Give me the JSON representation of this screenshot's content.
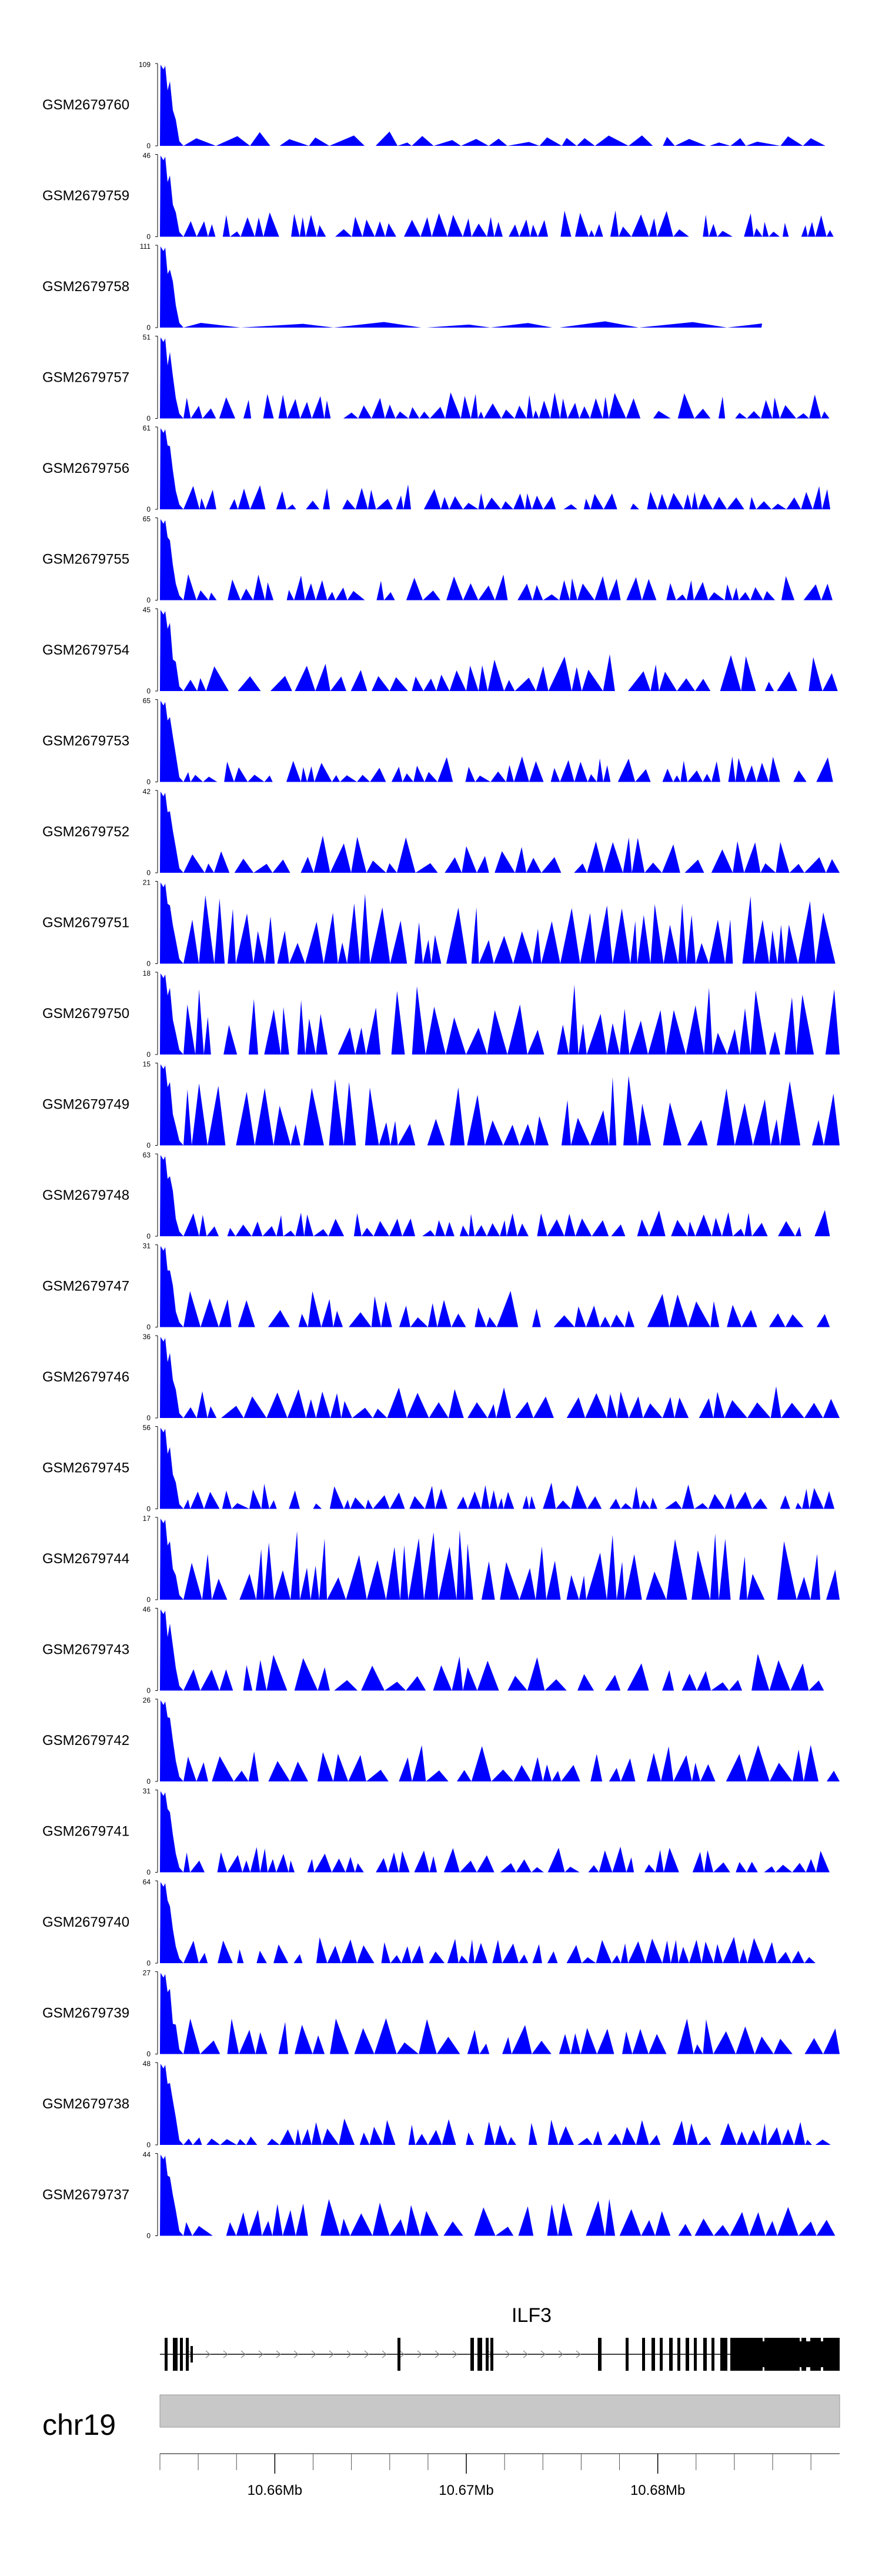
{
  "chart_data": {
    "type": "area",
    "description_type": "genome-browser coverage tracks",
    "fill_color": "#0000ff",
    "axis_color": "#000000",
    "x_domain_mb": [
      10.654,
      10.6895
    ],
    "tracks": [
      {
        "name": "GSM2679760",
        "ymax": "109",
        "ymin": "0",
        "peak": 109,
        "profile": "long"
      },
      {
        "name": "GSM2679759",
        "ymax": "46",
        "ymin": "0",
        "peak": 46,
        "profile": "dense"
      },
      {
        "name": "GSM2679758",
        "ymax": "111",
        "ymin": "0",
        "peak": 111,
        "profile": "sparse"
      },
      {
        "name": "GSM2679757",
        "ymax": "51",
        "ymin": "0",
        "peak": 51,
        "profile": "dense"
      },
      {
        "name": "GSM2679756",
        "ymax": "61",
        "ymin": "0",
        "peak": 61,
        "profile": "dense"
      },
      {
        "name": "GSM2679755",
        "ymax": "65",
        "ymin": "0",
        "peak": 65,
        "profile": "dense"
      },
      {
        "name": "GSM2679754",
        "ymax": "45",
        "ymin": "0",
        "peak": 45,
        "profile": "medium"
      },
      {
        "name": "GSM2679753",
        "ymax": "65",
        "ymin": "0",
        "peak": 65,
        "profile": "dense"
      },
      {
        "name": "GSM2679752",
        "ymax": "42",
        "ymin": "0",
        "peak": 42,
        "profile": "medium"
      },
      {
        "name": "GSM2679751",
        "ymax": "21",
        "ymin": "0",
        "peak": 21,
        "profile": "tall"
      },
      {
        "name": "GSM2679750",
        "ymax": "18",
        "ymin": "0",
        "peak": 18,
        "profile": "tall"
      },
      {
        "name": "GSM2679749",
        "ymax": "15",
        "ymin": "0",
        "peak": 15,
        "profile": "tall"
      },
      {
        "name": "GSM2679748",
        "ymax": "63",
        "ymin": "0",
        "peak": 63,
        "profile": "dense"
      },
      {
        "name": "GSM2679747",
        "ymax": "31",
        "ymin": "0",
        "peak": 31,
        "profile": "medium"
      },
      {
        "name": "GSM2679746",
        "ymax": "36",
        "ymin": "0",
        "peak": 36,
        "profile": "medium"
      },
      {
        "name": "GSM2679745",
        "ymax": "56",
        "ymin": "0",
        "peak": 56,
        "profile": "dense"
      },
      {
        "name": "GSM2679744",
        "ymax": "17",
        "ymin": "0",
        "peak": 17,
        "profile": "tall"
      },
      {
        "name": "GSM2679743",
        "ymax": "46",
        "ymin": "0",
        "peak": 46,
        "profile": "medium"
      },
      {
        "name": "GSM2679742",
        "ymax": "26",
        "ymin": "0",
        "peak": 26,
        "profile": "medium"
      },
      {
        "name": "GSM2679741",
        "ymax": "31",
        "ymin": "0",
        "peak": 31,
        "profile": "dense"
      },
      {
        "name": "GSM2679740",
        "ymax": "64",
        "ymin": "0",
        "peak": 64,
        "profile": "dense"
      },
      {
        "name": "GSM2679739",
        "ymax": "27",
        "ymin": "0",
        "peak": 27,
        "profile": "medium"
      },
      {
        "name": "GSM2679738",
        "ymax": "48",
        "ymin": "0",
        "peak": 48,
        "profile": "dense"
      },
      {
        "name": "GSM2679737",
        "ymax": "44",
        "ymin": "0",
        "peak": 44,
        "profile": "medium"
      }
    ],
    "gene": {
      "name": "ILF3",
      "strand": "+",
      "start_mb": 10.654,
      "end_mb": 10.6895,
      "exon_color": "#000000"
    },
    "ideogram": {
      "chrom": "chr19",
      "fill": "#c8c8c8"
    },
    "axis": {
      "ticks": [
        {
          "mb": 10.66,
          "label": "10.66Mb"
        },
        {
          "mb": 10.67,
          "label": "10.67Mb"
        },
        {
          "mb": 10.68,
          "label": "10.68Mb"
        }
      ],
      "minor_step_mb": 0.002
    }
  }
}
